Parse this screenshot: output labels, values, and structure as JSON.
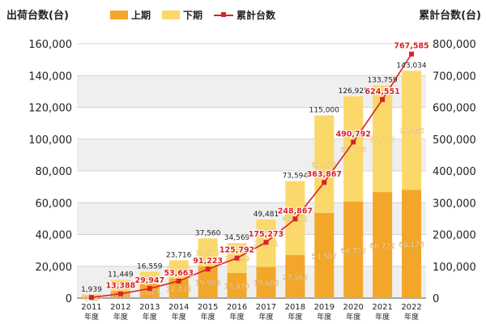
{
  "chart_data": {
    "type": "bar",
    "stacked": true,
    "categories": [
      "2011",
      "2012",
      "2013",
      "2014",
      "2015",
      "2016",
      "2017",
      "2018",
      "2019",
      "2020",
      "2021",
      "2022"
    ],
    "category_suffix": "年度",
    "series": [
      {
        "name": "上期",
        "color": "#f3a72a",
        "values": [
          746,
          4448,
          8624,
          12235,
          19983,
          15870,
          19680,
          27162,
          53587,
          60752,
          66722,
          68178
        ]
      },
      {
        "name": "下期",
        "color": "#fbd86a",
        "values": [
          1193,
          7001,
          7935,
          11481,
          17577,
          18699,
          29801,
          46432,
          61413,
          66173,
          67037,
          74856
        ]
      },
      {
        "name": "累計台数",
        "color": "#d9222a",
        "type": "line",
        "axis": "right",
        "values": [
          null,
          13388,
          29947,
          53663,
          91223,
          125792,
          175273,
          248867,
          363867,
          490792,
          624551,
          767585
        ]
      }
    ],
    "totals": [
      1939,
      11449,
      16559,
      23716,
      37560,
      34569,
      49481,
      73594,
      115000,
      126925,
      133759,
      143034
    ],
    "ylabel": "出荷台数(台)",
    "y2label": "累計台数(台)",
    "ylim": [
      0,
      160000
    ],
    "y2lim": [
      0,
      800000
    ],
    "yticks": [
      "0",
      "20,000",
      "40,000",
      "60,000",
      "80,000",
      "100,000",
      "120,000",
      "140,000",
      "160,000"
    ],
    "y2ticks": [
      "0",
      "100,000",
      "200,000",
      "300,000",
      "400,000",
      "500,000",
      "600,000",
      "700,000",
      "800,000"
    ],
    "legend_position": "top",
    "grid": true,
    "band_colors": [
      "#efefef",
      "#ffffff"
    ]
  }
}
